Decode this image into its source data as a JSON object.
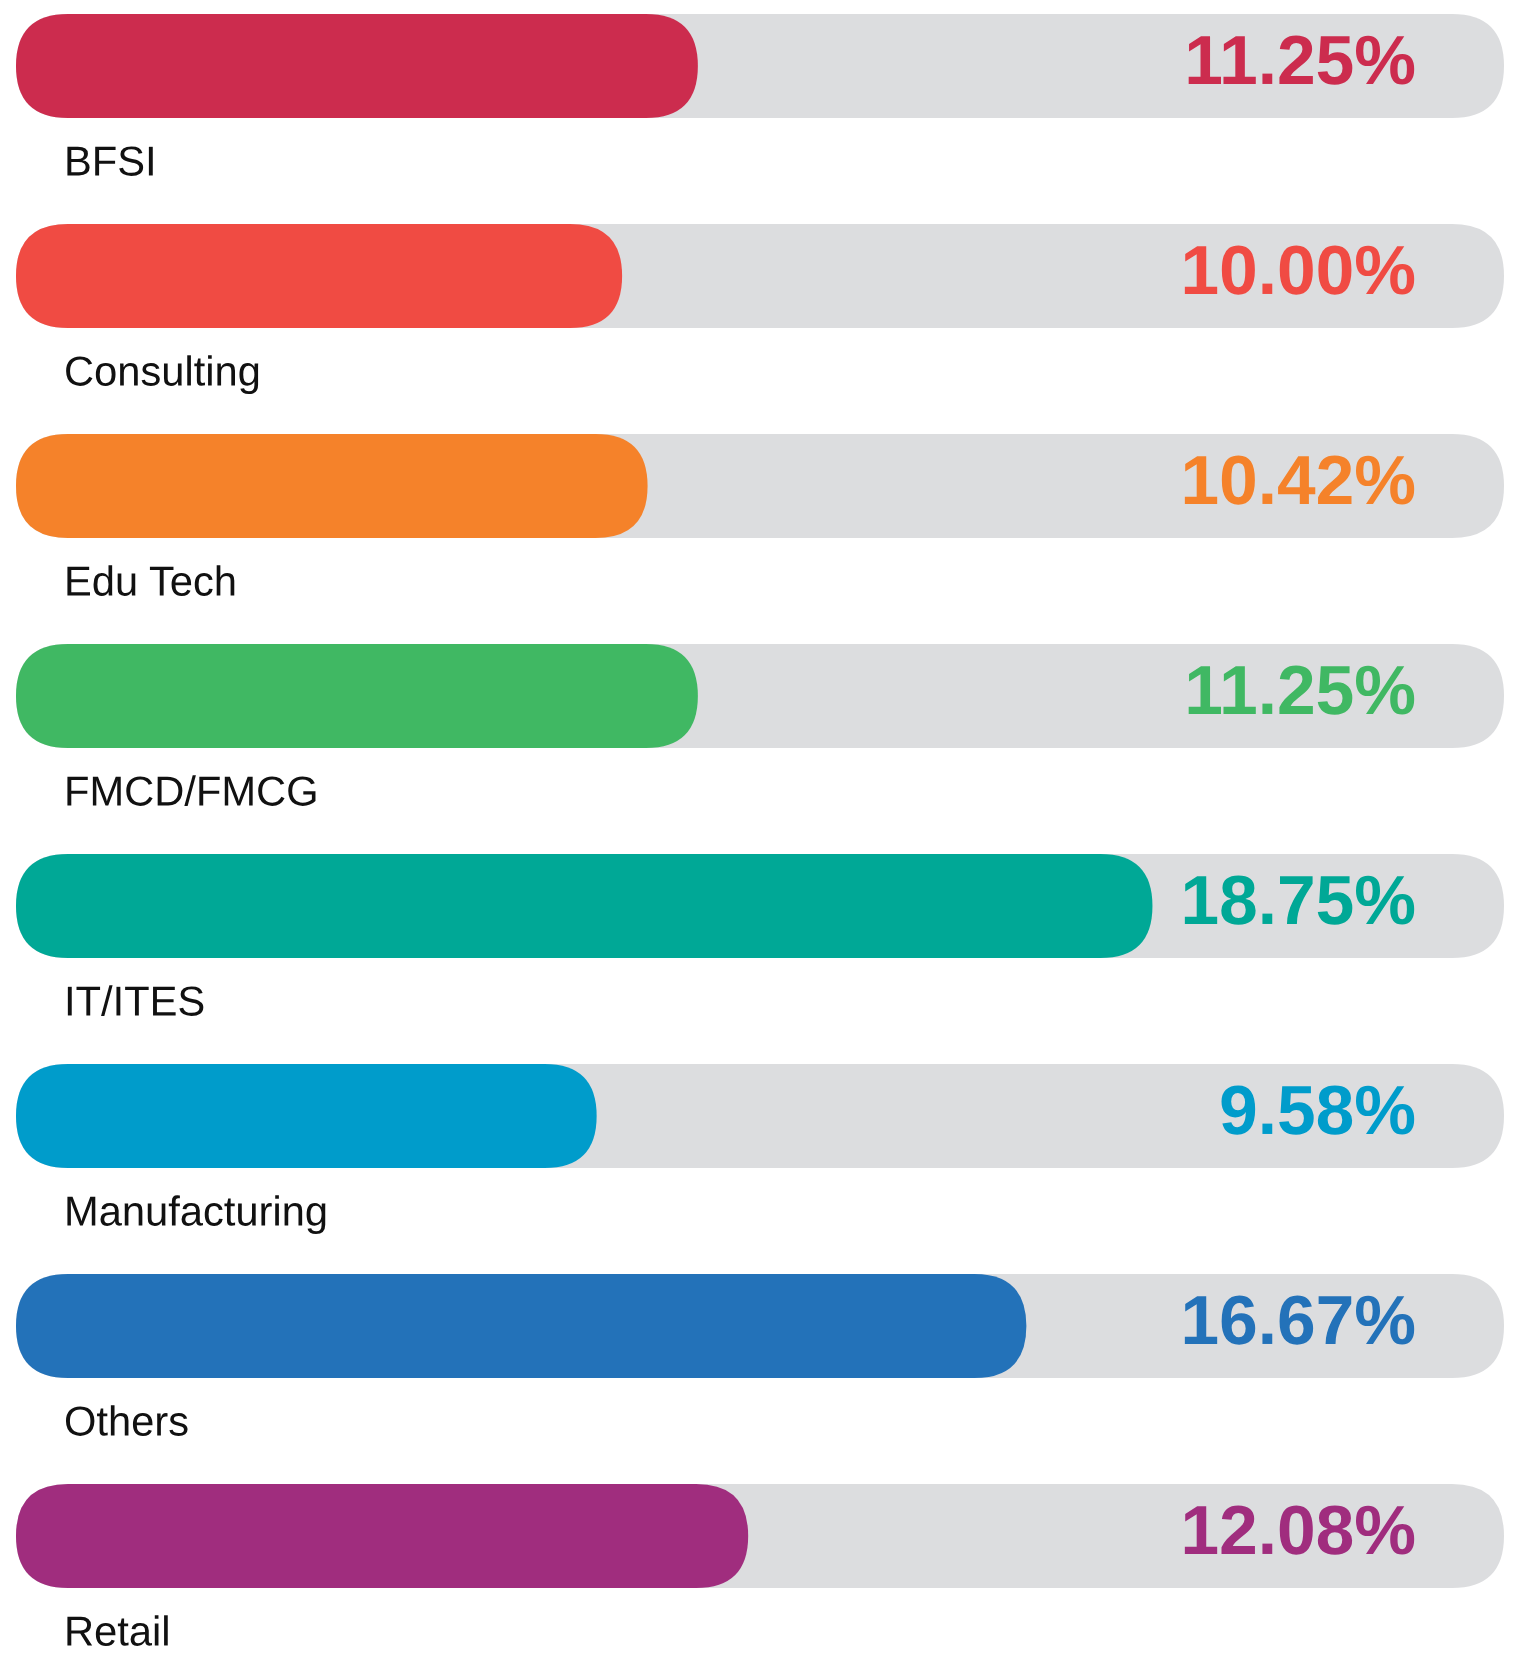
{
  "chart_data": {
    "type": "bar",
    "orientation": "horizontal",
    "categories": [
      "BFSI",
      "Consulting",
      "Edu Tech",
      "FMCD/FMCG",
      "IT/ITES",
      "Manufacturing",
      "Others",
      "Retail"
    ],
    "values": [
      11.25,
      10.0,
      10.42,
      11.25,
      18.75,
      9.58,
      16.67,
      12.08
    ],
    "value_labels": [
      "11.25%",
      "10.00%",
      "10.42%",
      "11.25%",
      "18.75%",
      "9.58%",
      "16.67%",
      "12.08%"
    ],
    "colors": [
      "#cc2c4e",
      "#f04b43",
      "#f5822a",
      "#40b863",
      "#00a896",
      "#009ccb",
      "#2372b9",
      "#a02d7e"
    ],
    "xlim": [
      0,
      24.55
    ]
  }
}
